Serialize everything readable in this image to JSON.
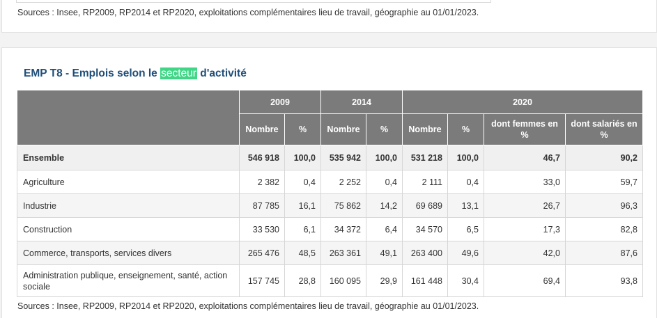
{
  "top_card": {
    "source": "Sources : Insee, RP2009, RP2014 et RP2020, exploitations complémentaires lieu de travail, géographie au 01/01/2023."
  },
  "table": {
    "title_before": "EMP T8 - Emplois selon le ",
    "title_highlight": "secteur",
    "title_after": " d'activité",
    "years": [
      "2009",
      "2014",
      "2020"
    ],
    "subheaders": {
      "nombre": "Nombre",
      "pct": "%",
      "femmes": "dont femmes en %",
      "salaries": "dont salariés en %"
    },
    "rows": [
      {
        "label": "Ensemble",
        "n2009": "546 918",
        "p2009": "100,0",
        "n2014": "535 942",
        "p2014": "100,0",
        "n2020": "531 218",
        "p2020": "100,0",
        "femmes": "46,7",
        "salaries": "90,2"
      },
      {
        "label": "Agriculture",
        "n2009": "2 382",
        "p2009": "0,4",
        "n2014": "2 252",
        "p2014": "0,4",
        "n2020": "2 111",
        "p2020": "0,4",
        "femmes": "33,0",
        "salaries": "59,7"
      },
      {
        "label": "Industrie",
        "n2009": "87 785",
        "p2009": "16,1",
        "n2014": "75 862",
        "p2014": "14,2",
        "n2020": "69 689",
        "p2020": "13,1",
        "femmes": "26,7",
        "salaries": "96,3"
      },
      {
        "label": "Construction",
        "n2009": "33 530",
        "p2009": "6,1",
        "n2014": "34 372",
        "p2014": "6,4",
        "n2020": "34 570",
        "p2020": "6,5",
        "femmes": "17,3",
        "salaries": "82,8"
      },
      {
        "label": "Commerce, transports, services divers",
        "n2009": "265 476",
        "p2009": "48,5",
        "n2014": "263 361",
        "p2014": "49,1",
        "n2020": "263 400",
        "p2020": "49,6",
        "femmes": "42,0",
        "salaries": "87,6"
      },
      {
        "label": "Administration publique, enseignement, santé, action sociale",
        "n2009": "157 745",
        "p2009": "28,8",
        "n2014": "160 095",
        "p2014": "29,9",
        "n2020": "161 448",
        "p2020": "30,4",
        "femmes": "69,4",
        "salaries": "93,8"
      }
    ],
    "source": "Sources : Insee, RP2009, RP2014 et RP2020, exploitations complémentaires lieu de travail, géographie au 01/01/2023."
  }
}
